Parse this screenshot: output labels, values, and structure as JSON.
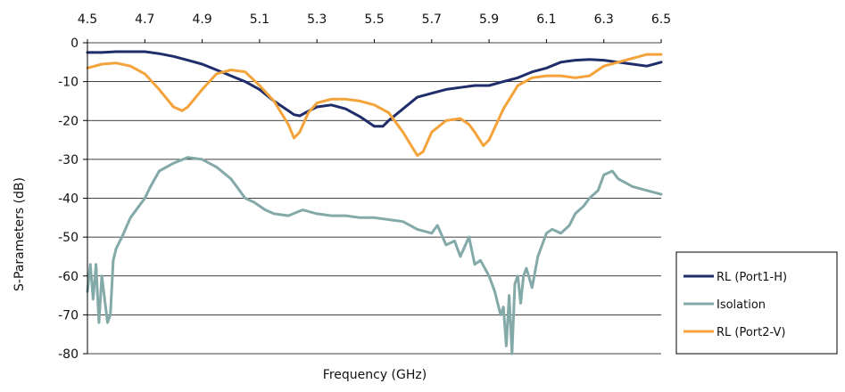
{
  "chart_data": {
    "type": "line",
    "title": "",
    "xlabel": "Frequency (GHz)",
    "ylabel": "S-Parameters (dB)",
    "xlim": [
      4.5,
      6.5
    ],
    "ylim": [
      -80,
      0
    ],
    "x_ticks": [
      "4.5",
      "4.7",
      "4.9",
      "5.1",
      "5.3",
      "5.5",
      "5.7",
      "5.9",
      "6.1",
      "6.3",
      "6.5"
    ],
    "y_ticks": [
      "0",
      "-10",
      "-20",
      "-30",
      "-40",
      "-50",
      "-60",
      "-70",
      "-80"
    ],
    "x_axis_position": "top",
    "grid": "horizontal",
    "legend_position": "bottom-right",
    "series": [
      {
        "name": "RL (Port1-H)",
        "color": "#1f2d6b",
        "x": [
          4.5,
          4.55,
          4.6,
          4.65,
          4.7,
          4.75,
          4.8,
          4.85,
          4.9,
          4.95,
          5.0,
          5.05,
          5.1,
          5.15,
          5.2,
          5.22,
          5.24,
          5.26,
          5.3,
          5.35,
          5.4,
          5.45,
          5.5,
          5.53,
          5.55,
          5.6,
          5.65,
          5.7,
          5.75,
          5.8,
          5.85,
          5.9,
          5.95,
          6.0,
          6.05,
          6.1,
          6.15,
          6.2,
          6.25,
          6.3,
          6.35,
          6.4,
          6.45,
          6.5
        ],
        "y": [
          -2.5,
          -2.5,
          -2.3,
          -2.3,
          -2.3,
          -2.8,
          -3.5,
          -4.5,
          -5.5,
          -7,
          -8.5,
          -10,
          -12,
          -15,
          -17.5,
          -18.5,
          -18.8,
          -18,
          -16.5,
          -16,
          -17,
          -19,
          -21.5,
          -21.5,
          -20,
          -17,
          -14,
          -13,
          -12,
          -11.5,
          -11,
          -11,
          -10,
          -9,
          -7.5,
          -6.5,
          -5,
          -4.5,
          -4.3,
          -4.5,
          -5,
          -5.5,
          -6,
          -5
        ]
      },
      {
        "name": "Isolation",
        "color": "#84a9a9",
        "x": [
          4.5,
          4.51,
          4.52,
          4.53,
          4.54,
          4.55,
          4.56,
          4.57,
          4.58,
          4.59,
          4.6,
          4.62,
          4.65,
          4.68,
          4.7,
          4.72,
          4.75,
          4.8,
          4.85,
          4.9,
          4.95,
          5.0,
          5.02,
          5.05,
          5.08,
          5.1,
          5.12,
          5.15,
          5.2,
          5.25,
          5.3,
          5.35,
          5.4,
          5.45,
          5.5,
          5.55,
          5.6,
          5.65,
          5.7,
          5.72,
          5.75,
          5.78,
          5.8,
          5.83,
          5.85,
          5.87,
          5.9,
          5.92,
          5.94,
          5.95,
          5.96,
          5.97,
          5.98,
          5.99,
          6.0,
          6.01,
          6.02,
          6.03,
          6.05,
          6.07,
          6.1,
          6.12,
          6.15,
          6.18,
          6.2,
          6.23,
          6.25,
          6.28,
          6.3,
          6.33,
          6.35,
          6.4,
          6.45,
          6.5
        ],
        "y": [
          -64,
          -57,
          -66,
          -57,
          -72,
          -60,
          -66,
          -72,
          -70,
          -56,
          -53,
          -50,
          -45,
          -42,
          -40,
          -37,
          -33,
          -31,
          -29.5,
          -30,
          -32,
          -35,
          -37,
          -40,
          -41,
          -42,
          -43,
          -44,
          -44.5,
          -43,
          -44,
          -44.5,
          -44.5,
          -45,
          -45,
          -45.5,
          -46,
          -48,
          -49,
          -47,
          -52,
          -51,
          -55,
          -50,
          -57,
          -56,
          -60,
          -64,
          -70,
          -68,
          -78,
          -65,
          -80,
          -62,
          -60,
          -67,
          -60,
          -58,
          -63,
          -55,
          -49,
          -48,
          -49,
          -47,
          -44,
          -42,
          -40,
          -38,
          -34,
          -33,
          -35,
          -37,
          -38,
          -39
        ]
      },
      {
        "name": "RL (Port2-V)",
        "color": "#f4a23a",
        "x": [
          4.5,
          4.55,
          4.6,
          4.65,
          4.7,
          4.75,
          4.8,
          4.83,
          4.85,
          4.9,
          4.95,
          5.0,
          5.05,
          5.1,
          5.15,
          5.2,
          5.22,
          5.24,
          5.27,
          5.3,
          5.35,
          5.4,
          5.45,
          5.5,
          5.55,
          5.6,
          5.65,
          5.67,
          5.7,
          5.75,
          5.8,
          5.83,
          5.85,
          5.88,
          5.9,
          5.95,
          6.0,
          6.05,
          6.1,
          6.15,
          6.2,
          6.25,
          6.3,
          6.35,
          6.4,
          6.45,
          6.5
        ],
        "y": [
          -6.5,
          -5.5,
          -5.2,
          -6,
          -8,
          -12,
          -16.5,
          -17.5,
          -16.5,
          -12,
          -8,
          -7,
          -7.5,
          -11,
          -15,
          -21,
          -24.5,
          -23,
          -18,
          -15.5,
          -14.5,
          -14.5,
          -15,
          -16,
          -18,
          -23,
          -29,
          -28,
          -23,
          -20,
          -19.5,
          -21,
          -23,
          -26.5,
          -25,
          -17,
          -11,
          -9,
          -8.5,
          -8.5,
          -9,
          -8.5,
          -6,
          -5,
          -4,
          -3,
          -3
        ]
      }
    ]
  }
}
